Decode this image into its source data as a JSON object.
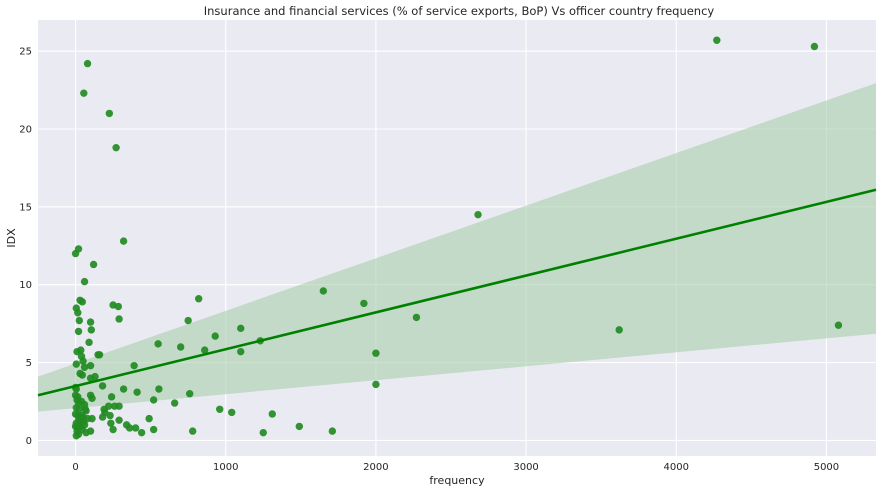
{
  "chart_data": {
    "type": "scatter",
    "title": "Insurance and financial services (% of service exports, BoP) Vs officer country frequency",
    "xlabel": "frequency",
    "ylabel": "IDX",
    "xlim": [
      -250,
      5330
    ],
    "ylim": [
      -1.0,
      27.0
    ],
    "xticks": [
      0,
      1000,
      2000,
      3000,
      4000,
      5000
    ],
    "yticks": [
      0,
      5,
      10,
      15,
      20,
      25
    ],
    "grid": true,
    "background": "#eaeaf2",
    "point_color": "#228b22",
    "line_color": "#008000",
    "band_color": "#a9cfab",
    "regression": {
      "x": [
        -250,
        5330
      ],
      "y": [
        2.9,
        16.1
      ],
      "ci_lower": [
        1.85,
        6.85
      ],
      "ci_upper": [
        4.1,
        22.95
      ]
    },
    "points": [
      {
        "x": 80,
        "y": 24.2
      },
      {
        "x": 55,
        "y": 22.3
      },
      {
        "x": 225,
        "y": 21.0
      },
      {
        "x": 270,
        "y": 18.8
      },
      {
        "x": 4270,
        "y": 25.7
      },
      {
        "x": 4920,
        "y": 25.3
      },
      {
        "x": 2680,
        "y": 14.5
      },
      {
        "x": 320,
        "y": 12.8
      },
      {
        "x": 20,
        "y": 12.3
      },
      {
        "x": 0,
        "y": 12.0
      },
      {
        "x": 120,
        "y": 11.3
      },
      {
        "x": 60,
        "y": 10.2
      },
      {
        "x": 1650,
        "y": 9.6
      },
      {
        "x": 820,
        "y": 9.1
      },
      {
        "x": 30,
        "y": 9.0
      },
      {
        "x": 45,
        "y": 8.9
      },
      {
        "x": 1920,
        "y": 8.8
      },
      {
        "x": 250,
        "y": 8.7
      },
      {
        "x": 285,
        "y": 8.6
      },
      {
        "x": 5,
        "y": 8.5
      },
      {
        "x": 15,
        "y": 8.2
      },
      {
        "x": 2270,
        "y": 7.9
      },
      {
        "x": 290,
        "y": 7.8
      },
      {
        "x": 25,
        "y": 7.7
      },
      {
        "x": 750,
        "y": 7.7
      },
      {
        "x": 100,
        "y": 7.6
      },
      {
        "x": 5080,
        "y": 7.4
      },
      {
        "x": 1100,
        "y": 7.2
      },
      {
        "x": 3620,
        "y": 7.1
      },
      {
        "x": 105,
        "y": 7.1
      },
      {
        "x": 20,
        "y": 7.0
      },
      {
        "x": 930,
        "y": 6.7
      },
      {
        "x": 1230,
        "y": 6.4
      },
      {
        "x": 90,
        "y": 6.3
      },
      {
        "x": 550,
        "y": 6.2
      },
      {
        "x": 700,
        "y": 6.0
      },
      {
        "x": 860,
        "y": 5.8
      },
      {
        "x": 1100,
        "y": 5.7
      },
      {
        "x": 10,
        "y": 5.7
      },
      {
        "x": 2000,
        "y": 5.6
      },
      {
        "x": 35,
        "y": 5.8
      },
      {
        "x": 150,
        "y": 5.5
      },
      {
        "x": 160,
        "y": 5.5
      },
      {
        "x": 40,
        "y": 5.4
      },
      {
        "x": 50,
        "y": 5.1
      },
      {
        "x": 5,
        "y": 4.9
      },
      {
        "x": 390,
        "y": 4.8
      },
      {
        "x": 100,
        "y": 4.8
      },
      {
        "x": 60,
        "y": 4.7
      },
      {
        "x": 30,
        "y": 4.3
      },
      {
        "x": 45,
        "y": 4.2
      },
      {
        "x": 130,
        "y": 4.1
      },
      {
        "x": 100,
        "y": 4.0
      },
      {
        "x": 2000,
        "y": 3.6
      },
      {
        "x": 180,
        "y": 3.5
      },
      {
        "x": 0,
        "y": 3.4
      },
      {
        "x": 5,
        "y": 3.3
      },
      {
        "x": 555,
        "y": 3.3
      },
      {
        "x": 320,
        "y": 3.3
      },
      {
        "x": 410,
        "y": 3.1
      },
      {
        "x": 760,
        "y": 3.0
      },
      {
        "x": 100,
        "y": 2.9
      },
      {
        "x": 0,
        "y": 2.9
      },
      {
        "x": 15,
        "y": 2.8
      },
      {
        "x": 240,
        "y": 2.8
      },
      {
        "x": 110,
        "y": 2.7
      },
      {
        "x": 520,
        "y": 2.6
      },
      {
        "x": 10,
        "y": 2.6
      },
      {
        "x": 40,
        "y": 2.5
      },
      {
        "x": 20,
        "y": 2.4
      },
      {
        "x": 660,
        "y": 2.4
      },
      {
        "x": 60,
        "y": 2.3
      },
      {
        "x": 260,
        "y": 2.2
      },
      {
        "x": 220,
        "y": 2.2
      },
      {
        "x": 290,
        "y": 2.2
      },
      {
        "x": 5,
        "y": 2.1
      },
      {
        "x": 25,
        "y": 2.0
      },
      {
        "x": 960,
        "y": 2.0
      },
      {
        "x": 190,
        "y": 2.0
      },
      {
        "x": 70,
        "y": 1.9
      },
      {
        "x": 1040,
        "y": 1.8
      },
      {
        "x": 195,
        "y": 1.8
      },
      {
        "x": 0,
        "y": 1.7
      },
      {
        "x": 1310,
        "y": 1.7
      },
      {
        "x": 15,
        "y": 1.6
      },
      {
        "x": 230,
        "y": 1.6
      },
      {
        "x": 180,
        "y": 1.5
      },
      {
        "x": 50,
        "y": 1.5
      },
      {
        "x": 110,
        "y": 1.4
      },
      {
        "x": 490,
        "y": 1.4
      },
      {
        "x": 80,
        "y": 1.4
      },
      {
        "x": 20,
        "y": 1.3
      },
      {
        "x": 290,
        "y": 1.3
      },
      {
        "x": 30,
        "y": 1.2
      },
      {
        "x": 235,
        "y": 1.1
      },
      {
        "x": 5,
        "y": 1.1
      },
      {
        "x": 60,
        "y": 1.0
      },
      {
        "x": 340,
        "y": 1.0
      },
      {
        "x": 1490,
        "y": 0.9
      },
      {
        "x": 0,
        "y": 0.9
      },
      {
        "x": 15,
        "y": 0.8
      },
      {
        "x": 360,
        "y": 0.8
      },
      {
        "x": 400,
        "y": 0.8
      },
      {
        "x": 520,
        "y": 0.7
      },
      {
        "x": 45,
        "y": 0.7
      },
      {
        "x": 250,
        "y": 0.7
      },
      {
        "x": 780,
        "y": 0.6
      },
      {
        "x": 1710,
        "y": 0.6
      },
      {
        "x": 100,
        "y": 0.6
      },
      {
        "x": 10,
        "y": 0.6
      },
      {
        "x": 70,
        "y": 0.5
      },
      {
        "x": 1250,
        "y": 0.5
      },
      {
        "x": 440,
        "y": 0.5
      },
      {
        "x": 20,
        "y": 0.4
      },
      {
        "x": 5,
        "y": 0.3
      },
      {
        "x": 30,
        "y": 0.9
      },
      {
        "x": 55,
        "y": 1.2
      },
      {
        "x": 40,
        "y": 1.6
      },
      {
        "x": 65,
        "y": 2.0
      },
      {
        "x": 25,
        "y": 1.0
      }
    ]
  }
}
